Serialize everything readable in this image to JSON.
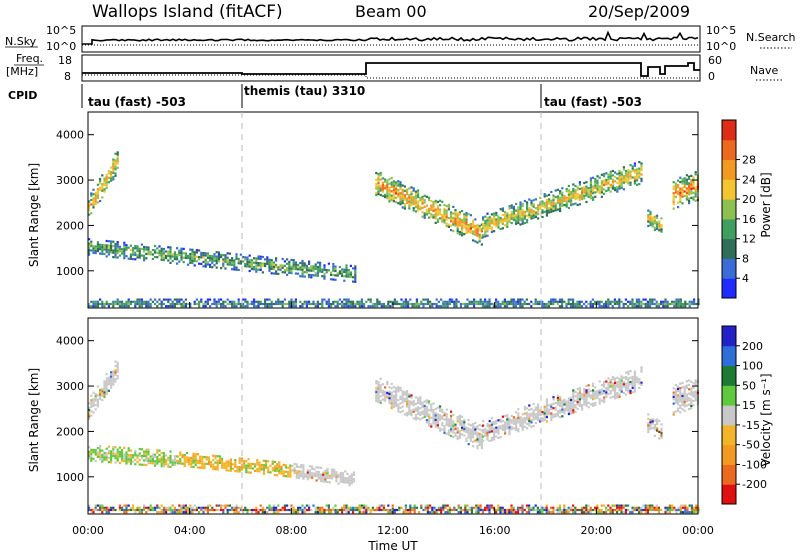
{
  "header": {
    "station": "Wallops Island (fitACF)",
    "beam": "Beam 00",
    "date": "20/Sep/2009"
  },
  "nsky_panel": {
    "left_label": "N.Sky",
    "left_ticks": [
      "10^5",
      "10^0"
    ],
    "right_label": "N.Search",
    "right_ticks": [
      "10^5",
      "10^0"
    ]
  },
  "freq_panel": {
    "left_label_1": "Freq.",
    "left_label_2": "[MHz]",
    "left_ticks": [
      "18",
      "8"
    ],
    "right_label": "Nave",
    "right_ticks": [
      "60",
      "0"
    ]
  },
  "cpid": {
    "label": "CPID",
    "segments": [
      {
        "name": "tau (fast) -503",
        "start_hour": 0
      },
      {
        "name": "themis (tau) 3310",
        "start_hour": 6
      },
      {
        "name": "tau (fast) -503",
        "start_hour": 18
      }
    ]
  },
  "chart_data": [
    {
      "type": "heatmap",
      "quantity": "Power",
      "ylabel": "Slant Range [km]",
      "ylim": [
        180,
        4500
      ],
      "yticks": [
        1000,
        2000,
        3000,
        4000
      ],
      "xlim": [
        0,
        24
      ],
      "colorbar": {
        "label": "Power [dB]",
        "range": [
          0,
          32
        ],
        "ticks": [
          "4",
          "8",
          "12",
          "16",
          "20",
          "24",
          "28"
        ],
        "colors": [
          "#1f2bff",
          "#3a6bd6",
          "#2f6e58",
          "#3f9f5f",
          "#8cc152",
          "#f2c531",
          "#f39a23",
          "#ec6a1f",
          "#de2d16"
        ]
      },
      "echo_regions": [
        {
          "t0": 0.0,
          "t1": 1.2,
          "r_center_start": 2400,
          "r_center_end": 3500,
          "thickness": 500,
          "level": 0.7
        },
        {
          "t0": 0.0,
          "t1": 10.5,
          "r_center_start": 1550,
          "r_center_end": 950,
          "thickness": 340,
          "level": 0.45
        },
        {
          "t0": 11.3,
          "t1": 15.5,
          "r_center_start": 2950,
          "r_center_end": 1850,
          "thickness": 550,
          "level": 0.75
        },
        {
          "t0": 15.5,
          "t1": 21.8,
          "r_center_start": 2000,
          "r_center_end": 3200,
          "thickness": 500,
          "level": 0.65
        },
        {
          "t0": 22.0,
          "t1": 22.6,
          "r_center_start": 2200,
          "r_center_end": 2000,
          "thickness": 400,
          "level": 0.6
        },
        {
          "t0": 23.0,
          "t1": 24.0,
          "r_center_start": 2700,
          "r_center_end": 2900,
          "thickness": 650,
          "level": 0.8
        },
        {
          "t0": 0.0,
          "t1": 24.0,
          "r_center_start": 300,
          "r_center_end": 300,
          "thickness": 180,
          "level": 0.35
        }
      ]
    },
    {
      "type": "heatmap",
      "quantity": "Velocity",
      "ylabel": "Slant Range [km]",
      "ylim": [
        180,
        4500
      ],
      "yticks": [
        1000,
        2000,
        3000,
        4000
      ],
      "xlim": [
        0,
        24
      ],
      "xticks": [
        "00:00",
        "04:00",
        "08:00",
        "12:00",
        "16:00",
        "20:00",
        "00:00"
      ],
      "xlabel": "Time UT",
      "colorbar": {
        "label": "Velocity [m s⁻¹]",
        "range": [
          -250,
          250
        ],
        "ticks": [
          "200",
          "100",
          "50",
          "15",
          "-15",
          "-50",
          "-100",
          "-200"
        ],
        "colors": [
          "#2222c8",
          "#2f6ed8",
          "#1d7a34",
          "#5fc93e",
          "#c8c8c8",
          "#f2b428",
          "#f39a23",
          "#ec6a1f",
          "#e01010"
        ]
      },
      "echo_regions": [
        {
          "t0": 0.0,
          "t1": 1.2,
          "r_center_start": 2500,
          "r_center_end": 3450,
          "thickness": 480,
          "class": "ground"
        },
        {
          "t0": 0.0,
          "t1": 3.5,
          "r_center_start": 1550,
          "r_center_end": 1400,
          "thickness": 340,
          "class": "positive_small"
        },
        {
          "t0": 3.5,
          "t1": 8.0,
          "r_center_start": 1400,
          "r_center_end": 1150,
          "thickness": 330,
          "class": "negative_small"
        },
        {
          "t0": 8.0,
          "t1": 10.5,
          "r_center_start": 1150,
          "r_center_end": 950,
          "thickness": 320,
          "class": "ground"
        },
        {
          "t0": 11.3,
          "t1": 15.5,
          "r_center_start": 2950,
          "r_center_end": 1850,
          "thickness": 560,
          "class": "ground"
        },
        {
          "t0": 15.5,
          "t1": 21.8,
          "r_center_start": 2000,
          "r_center_end": 3200,
          "thickness": 500,
          "class": "ground"
        },
        {
          "t0": 22.0,
          "t1": 22.6,
          "r_center_start": 2200,
          "r_center_end": 2000,
          "thickness": 400,
          "class": "ground"
        },
        {
          "t0": 23.0,
          "t1": 24.0,
          "r_center_start": 2700,
          "r_center_end": 2900,
          "thickness": 650,
          "class": "ground"
        },
        {
          "t0": 0.0,
          "t1": 24.0,
          "r_center_start": 300,
          "r_center_end": 300,
          "thickness": 180,
          "class": "mixed"
        }
      ]
    }
  ]
}
